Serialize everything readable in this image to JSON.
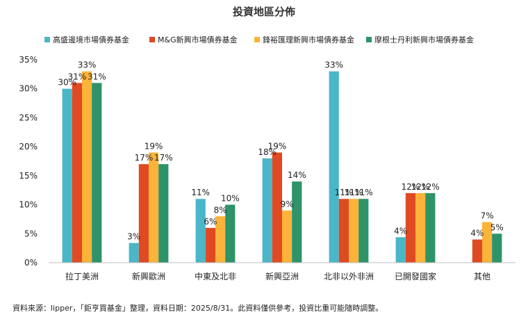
{
  "chart_data": {
    "type": "bar",
    "title": "投資地區分佈",
    "categories": [
      "拉丁美洲",
      "新興歐洲",
      "中東及北非",
      "新興亞洲",
      "北非以外非洲",
      "已開發國家",
      "其他"
    ],
    "series": [
      {
        "name": "高盛邊境市場債券基金",
        "color": "#4bb6c8",
        "values": [
          30,
          3.4,
          11,
          18,
          33,
          4.4,
          null
        ],
        "labels": [
          "30%",
          "3%",
          "11%",
          "18%",
          "33%",
          "4%",
          ""
        ]
      },
      {
        "name": "M&G新興市場債券基金",
        "color": "#e04a22",
        "values": [
          31,
          17,
          6,
          19,
          11,
          12,
          4
        ],
        "labels": [
          "31%",
          "17%",
          "6%",
          "19%",
          "11%",
          "12%",
          "4%"
        ]
      },
      {
        "name": "鋒裕匯理新興市場債券基金",
        "color": "#fbb33a",
        "values": [
          33,
          19,
          8,
          9,
          11,
          12,
          7
        ],
        "labels": [
          "33%",
          "19%",
          "8%",
          "9%",
          "11%",
          "12%",
          "7%"
        ]
      },
      {
        "name": "摩根士丹利新興市場債券基金",
        "color": "#2e9368",
        "values": [
          31,
          17,
          10,
          14,
          11,
          12,
          5
        ],
        "labels": [
          "31%",
          "17%",
          "10%",
          "14%",
          "11%",
          "12%",
          "5%"
        ]
      }
    ],
    "ylim": [
      0,
      35
    ],
    "yticks": [
      0,
      5,
      10,
      15,
      20,
      25,
      30,
      35
    ],
    "ytick_labels": [
      "0%",
      "5%",
      "10%",
      "15%",
      "20%",
      "25%",
      "30%",
      "35%"
    ],
    "grid": false,
    "legend_position": "top"
  },
  "footer": {
    "source": "資料來源：lipper，「鉅亨買基金」整理，資料日期：2025/8/31。此資料僅供參考，投資比重可能隨時調整。"
  }
}
